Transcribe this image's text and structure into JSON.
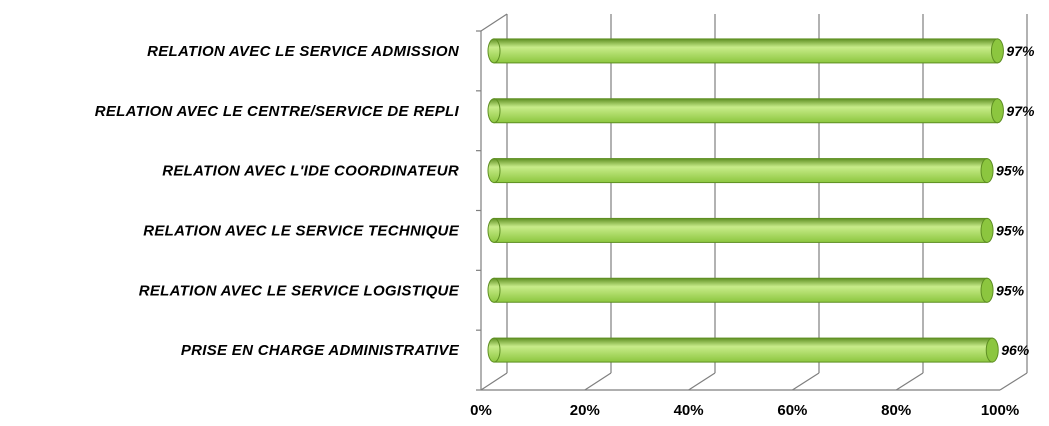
{
  "chart_data": {
    "type": "bar",
    "orientation": "horizontal",
    "style": "3d-cylinder",
    "categories": [
      "RELATION AVEC LE SERVICE ADMISSION",
      "RELATION AVEC LE CENTRE/SERVICE DE REPLI",
      "RELATION AVEC L'IDE COORDINATEUR",
      "RELATION AVEC LE SERVICE TECHNIQUE",
      "RELATION AVEC LE SERVICE LOGISTIQUE",
      "PRISE EN CHARGE ADMINISTRATIVE"
    ],
    "values": [
      0.97,
      0.97,
      0.95,
      0.95,
      0.95,
      0.96
    ],
    "data_labels": [
      "97%",
      "97%",
      "95%",
      "95%",
      "95%",
      "96%"
    ],
    "xlim": [
      0,
      1
    ],
    "x_ticks": [
      0,
      0.2,
      0.4,
      0.6,
      0.8,
      1.0
    ],
    "x_tick_labels": [
      "0%",
      "20%",
      "40%",
      "60%",
      "80%",
      "100%"
    ],
    "grid": true,
    "legend": "none",
    "bar_color": "#8CC63F",
    "bar_highlight": "#C8EC8A",
    "bar_edge": "#5E8F22",
    "grid_color": "#7F7F7F"
  }
}
